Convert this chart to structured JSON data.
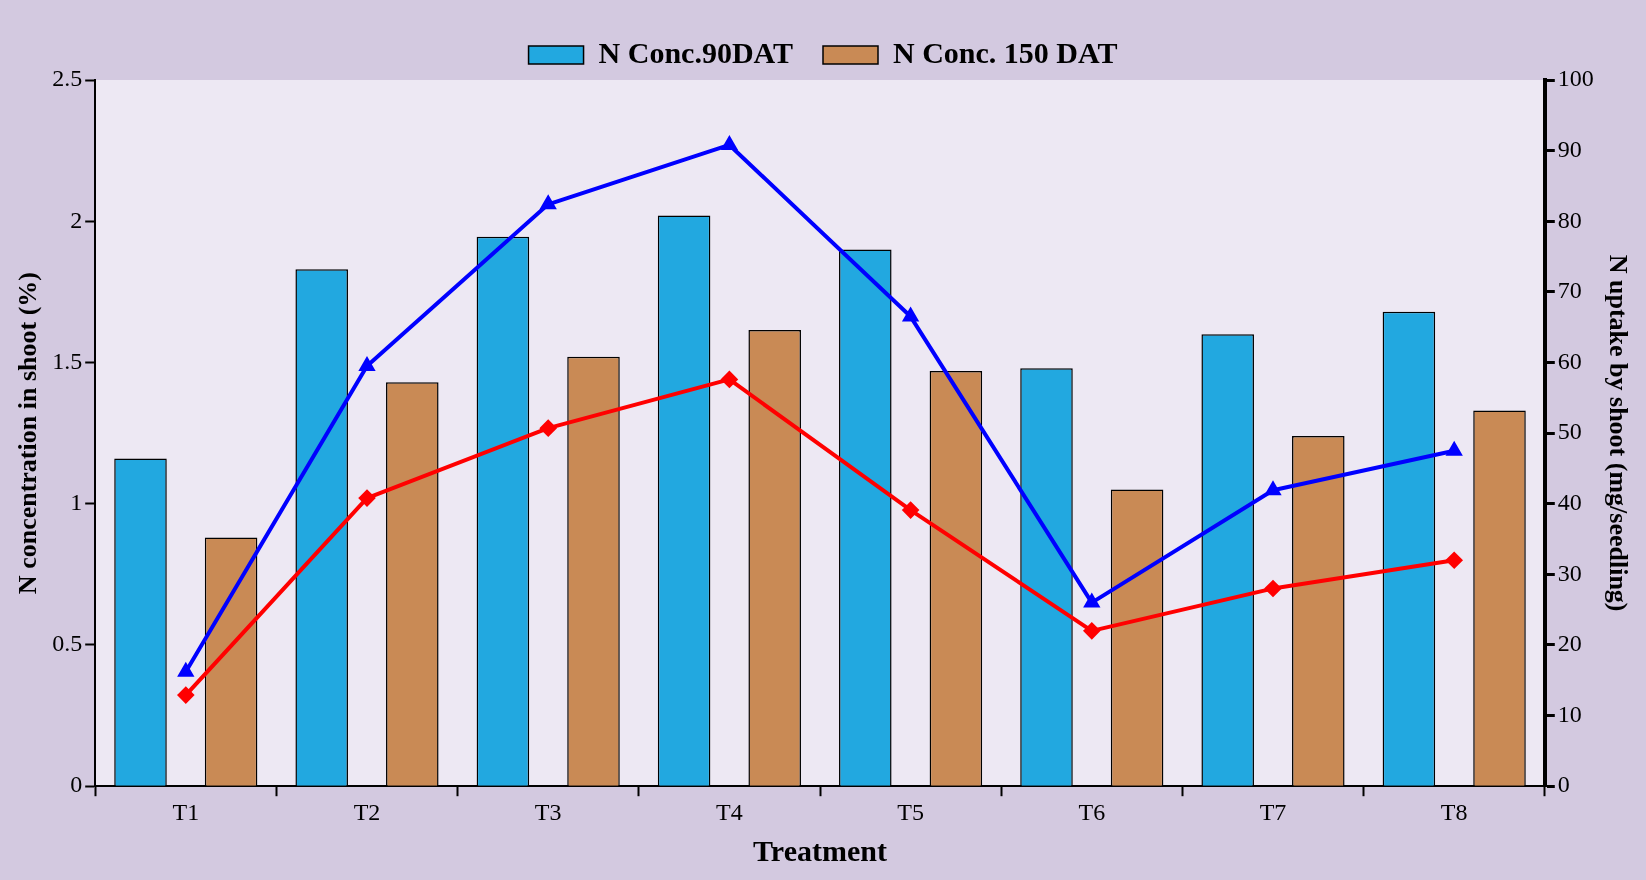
{
  "chart_data": {
    "type": "bar",
    "xlabel": "Treatment",
    "ylabel": "N concentration in shoot (%)",
    "y2label": "N uptake by shoot (mg/seedling)",
    "categories": [
      "T1",
      "T2",
      "T3",
      "T4",
      "T5",
      "T6",
      "T7",
      "T8"
    ],
    "series": [
      {
        "name": "N Conc.90DAT",
        "color": "#22a8e0",
        "values": [
          1.16,
          1.83,
          1.945,
          2.02,
          1.9,
          1.48,
          1.6,
          1.68
        ]
      },
      {
        "name": "N Conc. 150 DAT",
        "color": "#c98a55",
        "values": [
          0.88,
          1.43,
          1.52,
          1.615,
          1.47,
          1.05,
          1.24,
          1.33
        ]
      },
      {
        "type": "line",
        "axis": "y2",
        "color": "#0000ff",
        "marker": "triangle",
        "values": [
          16.2,
          59.5,
          82.4,
          90.8,
          66.5,
          26,
          41.9,
          47.5
        ]
      },
      {
        "type": "line",
        "axis": "y2",
        "color": "#ff0000",
        "marker": "diamond",
        "values": [
          12.9,
          40.8,
          50.7,
          57.6,
          39.1,
          22,
          28,
          32
        ]
      }
    ],
    "ylim": [
      0,
      2.5
    ],
    "yticks": [
      0,
      0.5,
      1,
      1.5,
      2,
      2.5
    ],
    "y2lim": [
      0,
      100
    ],
    "y2ticks": [
      0,
      10,
      20,
      30,
      40,
      50,
      60,
      70,
      80,
      90,
      100
    ],
    "grid": false,
    "legend": "top",
    "line_style": "solid"
  }
}
